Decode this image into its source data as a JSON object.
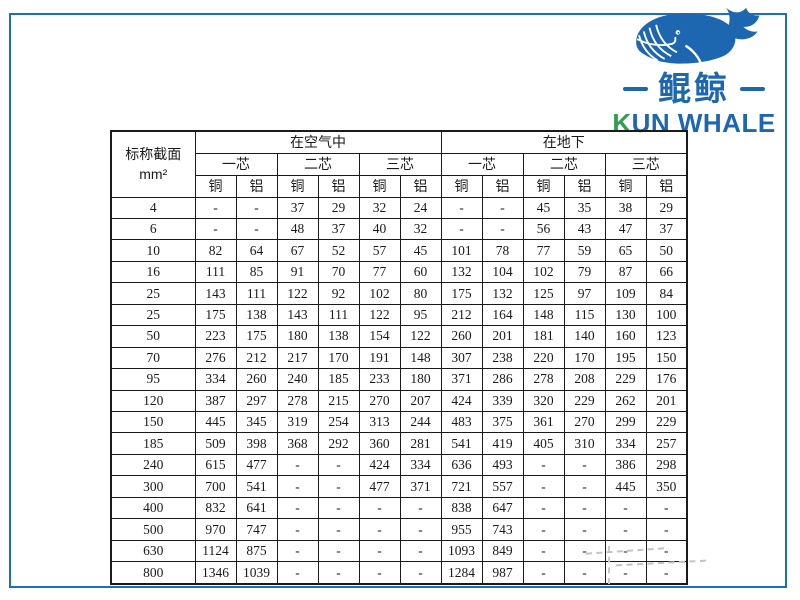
{
  "frame": {
    "border_color": "#1d6fbe"
  },
  "logo": {
    "whale_icon": "blue-whale",
    "name_cn": "鲲鲸",
    "name_en_lead": "K",
    "name_en_rest": "UN WHALE",
    "blue": "#1c67b0",
    "green": "#2f9e4f"
  },
  "table": {
    "corner_line1": "标称截面",
    "corner_line2": "mm²",
    "groups": [
      "在空气中",
      "在地下"
    ],
    "cores": [
      "一芯",
      "二芯",
      "三芯",
      "一芯",
      "二芯",
      "三芯"
    ],
    "materials": [
      "铜",
      "铝",
      "铜",
      "铝",
      "铜",
      "铝",
      "铜",
      "铝",
      "铜",
      "铝",
      "铜",
      "铝"
    ],
    "rows": [
      [
        "4",
        "-",
        "-",
        "37",
        "29",
        "32",
        "24",
        "-",
        "-",
        "45",
        "35",
        "38",
        "29"
      ],
      [
        "6",
        "-",
        "-",
        "48",
        "37",
        "40",
        "32",
        "-",
        "-",
        "56",
        "43",
        "47",
        "37"
      ],
      [
        "10",
        "82",
        "64",
        "67",
        "52",
        "57",
        "45",
        "101",
        "78",
        "77",
        "59",
        "65",
        "50"
      ],
      [
        "16",
        "111",
        "85",
        "91",
        "70",
        "77",
        "60",
        "132",
        "104",
        "102",
        "79",
        "87",
        "66"
      ],
      [
        "25",
        "143",
        "111",
        "122",
        "92",
        "102",
        "80",
        "175",
        "132",
        "125",
        "97",
        "109",
        "84"
      ],
      [
        "25",
        "175",
        "138",
        "143",
        "111",
        "122",
        "95",
        "212",
        "164",
        "148",
        "115",
        "130",
        "100"
      ],
      [
        "50",
        "223",
        "175",
        "180",
        "138",
        "154",
        "122",
        "260",
        "201",
        "181",
        "140",
        "160",
        "123"
      ],
      [
        "70",
        "276",
        "212",
        "217",
        "170",
        "191",
        "148",
        "307",
        "238",
        "220",
        "170",
        "195",
        "150"
      ],
      [
        "95",
        "334",
        "260",
        "240",
        "185",
        "233",
        "180",
        "371",
        "286",
        "278",
        "208",
        "229",
        "176"
      ],
      [
        "120",
        "387",
        "297",
        "278",
        "215",
        "270",
        "207",
        "424",
        "339",
        "320",
        "229",
        "262",
        "201"
      ],
      [
        "150",
        "445",
        "345",
        "319",
        "254",
        "313",
        "244",
        "483",
        "375",
        "361",
        "270",
        "299",
        "229"
      ],
      [
        "185",
        "509",
        "398",
        "368",
        "292",
        "360",
        "281",
        "541",
        "419",
        "405",
        "310",
        "334",
        "257"
      ],
      [
        "240",
        "615",
        "477",
        "-",
        "-",
        "424",
        "334",
        "636",
        "493",
        "-",
        "-",
        "386",
        "298"
      ],
      [
        "300",
        "700",
        "541",
        "-",
        "-",
        "477",
        "371",
        "721",
        "557",
        "-",
        "-",
        "445",
        "350"
      ],
      [
        "400",
        "832",
        "641",
        "-",
        "-",
        "-",
        "-",
        "838",
        "647",
        "-",
        "-",
        "-",
        "-"
      ],
      [
        "500",
        "970",
        "747",
        "-",
        "-",
        "-",
        "-",
        "955",
        "743",
        "-",
        "-",
        "-",
        "-"
      ],
      [
        "630",
        "1124",
        "875",
        "-",
        "-",
        "-",
        "-",
        "1093",
        "849",
        "-",
        "-",
        "-",
        "-"
      ],
      [
        "800",
        "1346",
        "1039",
        "-",
        "-",
        "-",
        "-",
        "1284",
        "987",
        "-",
        "-",
        "-",
        "-"
      ]
    ]
  }
}
